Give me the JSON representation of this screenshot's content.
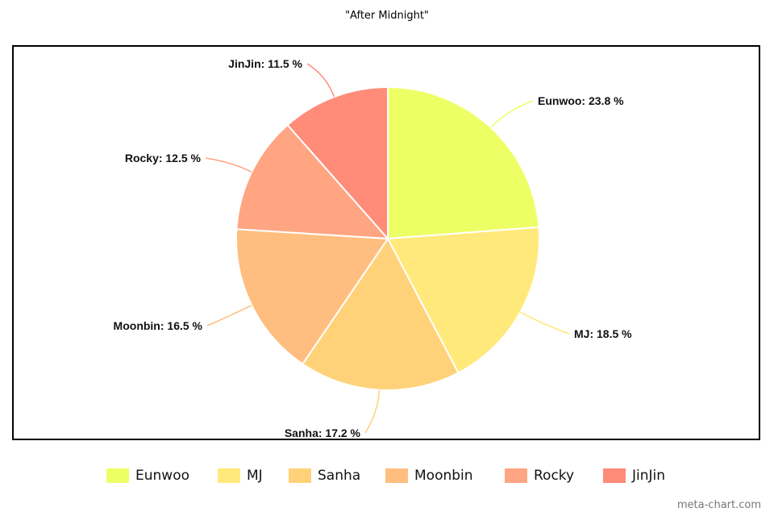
{
  "chart_data": {
    "type": "pie",
    "title": "\"After Midnight\"",
    "categories": [
      "Eunwoo",
      "MJ",
      "Sanha",
      "Moonbin",
      "Rocky",
      "JinJin"
    ],
    "values": [
      23.8,
      18.5,
      17.2,
      16.5,
      12.5,
      11.5
    ],
    "labels": [
      "Eunwoo: 23.8 %",
      "MJ: 18.5 %",
      "Sanha: 17.2 %",
      "Moonbin: 16.5 %",
      "Rocky: 12.5 %",
      "JinJin: 11.5 %"
    ],
    "colors": [
      "#eeff66",
      "#ffe97a",
      "#ffd27a",
      "#ffbe7f",
      "#ffa582",
      "#ff8b79"
    ],
    "legend": "bottom"
  },
  "watermark": "meta-chart.com"
}
